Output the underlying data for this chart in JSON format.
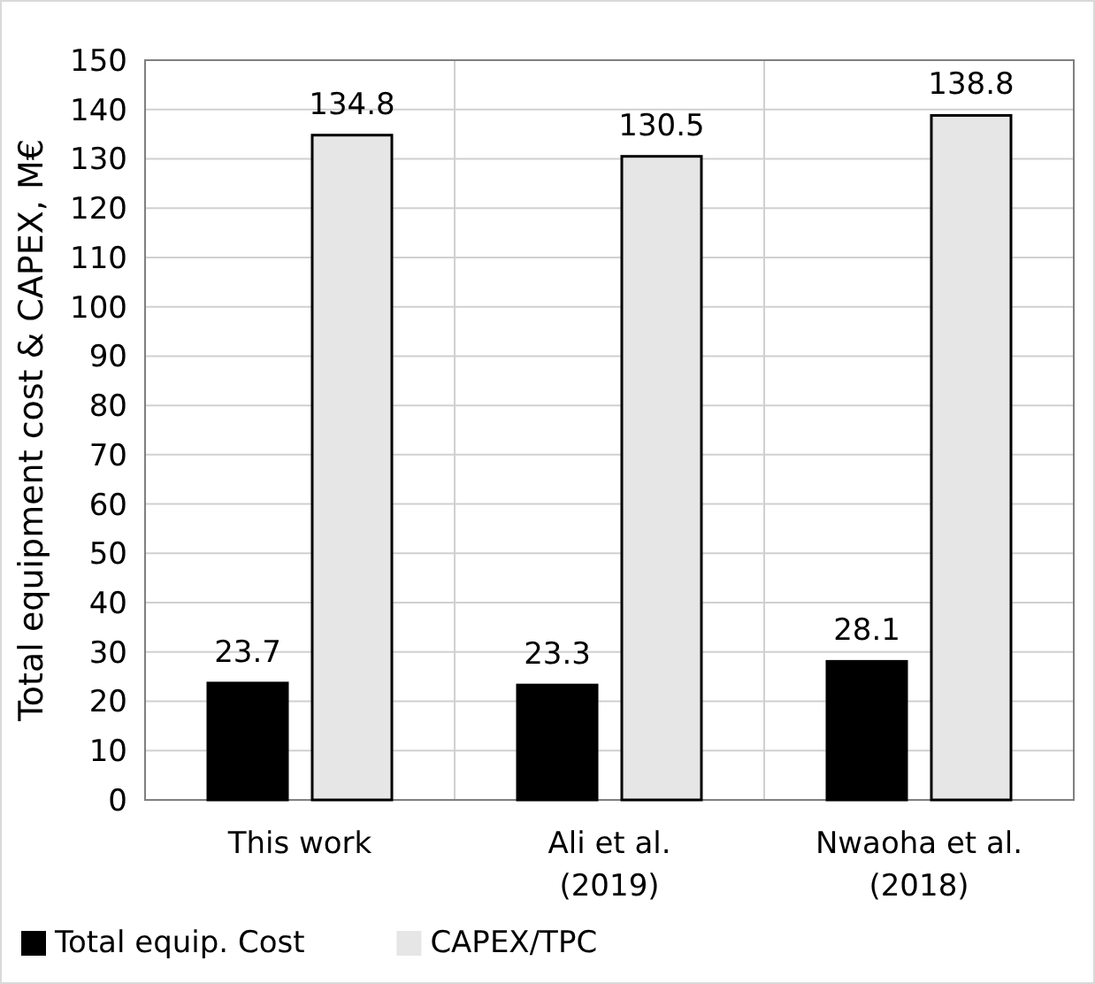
{
  "chart_data": {
    "type": "bar",
    "ylabel": "Total equipment cost & CAPEX,  M€",
    "categories": [
      "This work",
      "Ali et al. (2019)",
      "Nwaoha et al. (2018)"
    ],
    "series": [
      {
        "name": "Total equip. Cost",
        "color": "#000000",
        "values": [
          23.7,
          23.3,
          28.1
        ]
      },
      {
        "name": "CAPEX/TPC",
        "color": "#e6e6e6",
        "values": [
          134.8,
          130.5,
          138.8
        ]
      }
    ],
    "ylim": [
      0,
      150
    ],
    "yticks": [
      0,
      10,
      20,
      30,
      40,
      50,
      60,
      70,
      80,
      90,
      100,
      110,
      120,
      130,
      140,
      150
    ],
    "grid": true,
    "legend": "bottom left",
    "data_labels": true
  }
}
